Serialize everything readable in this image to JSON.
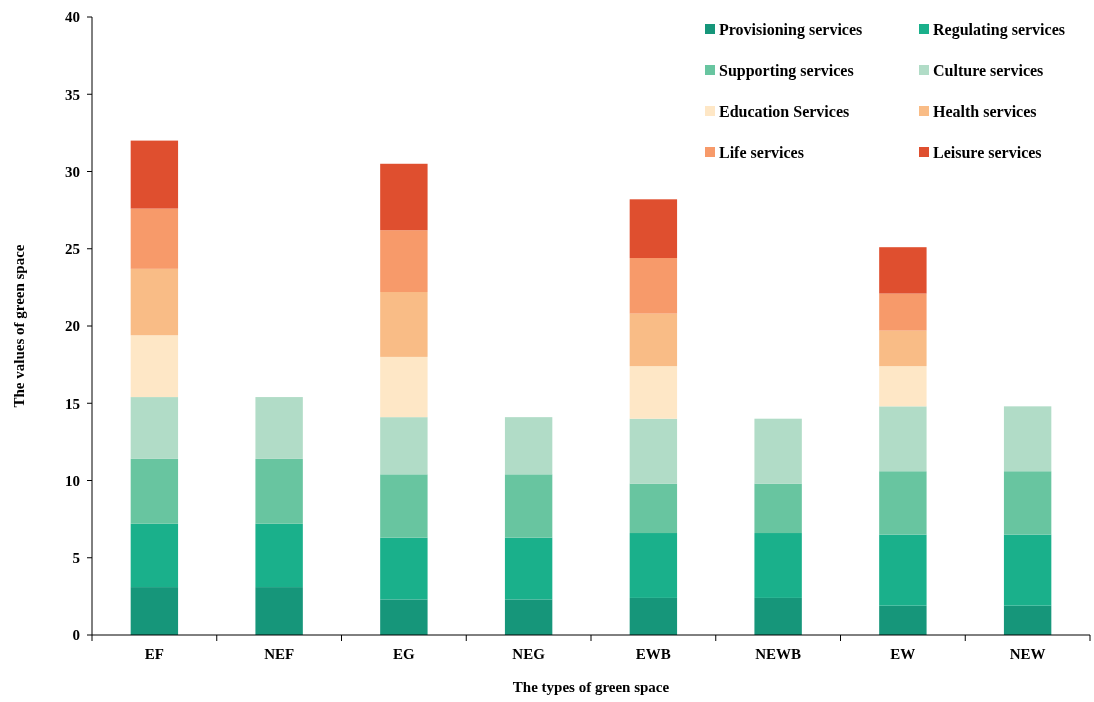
{
  "chart_data": {
    "type": "bar",
    "stacked": true,
    "xlabel": "The types of green space",
    "ylabel": "The values of green space",
    "categories": [
      "EF",
      "NEF",
      "EG",
      "NEG",
      "EWB",
      "NEWB",
      "EW",
      "NEW"
    ],
    "ylim": [
      0,
      40
    ],
    "yticks": [
      0,
      5,
      10,
      15,
      20,
      25,
      30,
      35,
      40
    ],
    "grid": false,
    "legend": "top right",
    "series": [
      {
        "name": "Provisioning services",
        "color": "#16967a",
        "values": [
          3.1,
          3.1,
          2.3,
          2.3,
          2.4,
          2.4,
          1.9,
          1.9
        ]
      },
      {
        "name": "Regulating services",
        "color": "#1ab08b",
        "values": [
          4.1,
          4.1,
          4.0,
          4.0,
          4.2,
          4.2,
          4.6,
          4.6
        ]
      },
      {
        "name": "Supporting services",
        "color": "#68c5a0",
        "values": [
          4.2,
          4.2,
          4.1,
          4.1,
          3.2,
          3.2,
          4.1,
          4.1
        ]
      },
      {
        "name": "Culture services",
        "color": "#b1dcc7",
        "values": [
          4.0,
          4.0,
          3.7,
          3.7,
          4.2,
          4.2,
          4.2,
          4.2
        ]
      },
      {
        "name": "Education Services",
        "color": "#fee7c6",
        "values": [
          4.0,
          null,
          3.9,
          null,
          3.4,
          null,
          2.6,
          null
        ]
      },
      {
        "name": "Health services",
        "color": "#f9bc86",
        "values": [
          4.3,
          null,
          4.2,
          null,
          3.4,
          null,
          2.3,
          null
        ]
      },
      {
        "name": "Life services",
        "color": "#f79a6a",
        "values": [
          3.9,
          null,
          4.0,
          null,
          3.6,
          null,
          2.4,
          null
        ]
      },
      {
        "name": "Leisure services",
        "color": "#df4f2f",
        "values": [
          4.4,
          null,
          4.3,
          null,
          3.8,
          null,
          3.0,
          null
        ]
      }
    ]
  }
}
